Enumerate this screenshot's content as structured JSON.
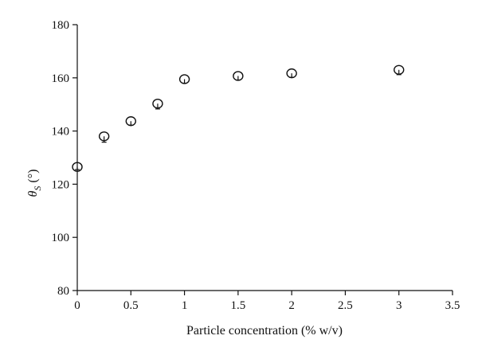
{
  "chart_data": {
    "type": "scatter",
    "title": "",
    "xlabel": "Particle concentration (% w/v)",
    "ylabel_symbol": "θ",
    "ylabel_subscript": "S",
    "ylabel_unit": "(°)",
    "xlim": [
      0,
      3.5
    ],
    "ylim": [
      80,
      180
    ],
    "x_ticks": [
      0,
      0.5,
      1,
      1.5,
      2,
      2.5,
      3,
      3.5
    ],
    "x_tick_labels": [
      "0",
      "0.5",
      "1",
      "1.5",
      "2",
      "2.5",
      "3",
      "3.5"
    ],
    "y_ticks": [
      80,
      100,
      120,
      140,
      160,
      180
    ],
    "y_tick_labels": [
      "80",
      "100",
      "120",
      "140",
      "160",
      "180"
    ],
    "grid": false,
    "legend": "none",
    "marker": "open-circle",
    "series": [
      {
        "x": [
          0,
          0.25,
          0.5,
          0.75,
          1,
          1.5,
          2,
          3
        ],
        "y": [
          126.5,
          138,
          143.7,
          150.3,
          159.5,
          160.7,
          161.7,
          163
        ],
        "err_low": [
          1.0,
          2.2,
          1.5,
          2.0,
          1.5,
          1.5,
          1.5,
          1.8
        ],
        "err_high": [
          0,
          0,
          0,
          0,
          0,
          0,
          0,
          0
        ]
      }
    ]
  }
}
